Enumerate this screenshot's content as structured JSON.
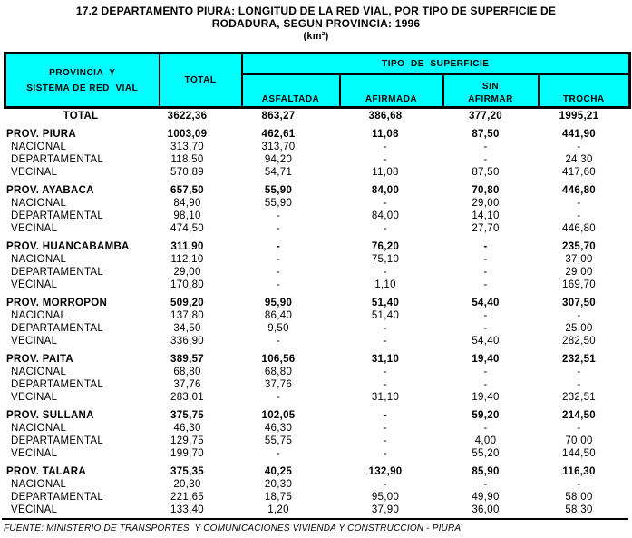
{
  "colors": {
    "header_bg": "#00ffff",
    "border": "#000000",
    "text": "#000000",
    "page_bg": "#ffffff"
  },
  "title": {
    "line1": "17.2  DEPARTAMENTO PIURA: LONGITUD DE LA RED VIAL, POR TIPO DE SUPERFICIE DE",
    "line2": "RODADURA,  SEGUN PROVINCIA: 1996",
    "unit": "(km²)"
  },
  "header": {
    "province_col": "PROVINCIA  Y\nSISTEMA DE RED  VIAL",
    "total_col": "TOTAL",
    "surface_group": "TIPO  DE  SUPERFICIE",
    "surface_cols": [
      "ASFALTADA",
      "AFIRMADA",
      "SIN\nAFIRMAR",
      "TROCHA"
    ]
  },
  "rows": [
    {
      "label": "TOTAL",
      "type": "total",
      "values": [
        "3622,36",
        "863,27",
        "386,68",
        "377,20",
        "1995,21"
      ]
    },
    {
      "label": "PROV. PIURA",
      "type": "province",
      "values": [
        "1003,09",
        "462,61",
        "11,08",
        "87,50",
        "441,90"
      ]
    },
    {
      "label": "NACIONAL",
      "type": "sub",
      "values": [
        "313,70",
        "313,70",
        "-",
        "-",
        "-"
      ]
    },
    {
      "label": "DEPARTAMENTAL",
      "type": "sub",
      "values": [
        "118,50",
        "94,20",
        "-",
        "-",
        "24,30"
      ]
    },
    {
      "label": "VECINAL",
      "type": "sub",
      "values": [
        "570,89",
        "54,71",
        "11,08",
        "87,50",
        "417,60"
      ]
    },
    {
      "label": "PROV. AYABACA",
      "type": "province",
      "values": [
        "657,50",
        "55,90",
        "84,00",
        "70,80",
        "446,80"
      ]
    },
    {
      "label": "NACIONAL",
      "type": "sub",
      "values": [
        "84,90",
        "55,90",
        "-",
        "29,00",
        "-"
      ]
    },
    {
      "label": "DEPARTAMENTAL",
      "type": "sub",
      "values": [
        "98,10",
        "-",
        "84,00",
        "14,10",
        "-"
      ]
    },
    {
      "label": "VECINAL",
      "type": "sub",
      "values": [
        "474,50",
        "-",
        "-",
        "27,70",
        "446,80"
      ]
    },
    {
      "label": "PROV. HUANCABAMBA",
      "type": "province",
      "values": [
        "311,90",
        "-",
        "76,20",
        "-",
        "235,70"
      ]
    },
    {
      "label": "NACIONAL",
      "type": "sub",
      "values": [
        "112,10",
        "-",
        "75,10",
        "-",
        "37,00"
      ]
    },
    {
      "label": "DEPARTAMENTAL",
      "type": "sub",
      "values": [
        "29,00",
        "-",
        "-",
        "-",
        "29,00"
      ]
    },
    {
      "label": "VECINAL",
      "type": "sub",
      "values": [
        "170,80",
        "-",
        "1,10",
        "-",
        "169,70"
      ]
    },
    {
      "label": "PROV. MORROPON",
      "type": "province",
      "values": [
        "509,20",
        "95,90",
        "51,40",
        "54,40",
        "307,50"
      ]
    },
    {
      "label": "NACIONAL",
      "type": "sub",
      "values": [
        "137,80",
        "86,40",
        "51,40",
        "-",
        "-"
      ]
    },
    {
      "label": "DEPARTAMENTAL",
      "type": "sub",
      "values": [
        "34,50",
        "9,50",
        "-",
        "-",
        "25,00"
      ]
    },
    {
      "label": "VECINAL",
      "type": "sub",
      "values": [
        "336,90",
        "-",
        "-",
        "54,40",
        "282,50"
      ]
    },
    {
      "label": "PROV. PAITA",
      "type": "province",
      "values": [
        "389,57",
        "106,56",
        "31,10",
        "19,40",
        "232,51"
      ]
    },
    {
      "label": "NACIONAL",
      "type": "sub",
      "values": [
        "68,80",
        "68,80",
        "-",
        "-",
        "-"
      ]
    },
    {
      "label": "DEPARTAMENTAL",
      "type": "sub",
      "values": [
        "37,76",
        "37,76",
        "-",
        "-",
        "-"
      ]
    },
    {
      "label": "VECINAL",
      "type": "sub",
      "values": [
        "283,01",
        "-",
        "31,10",
        "19,40",
        "232,51"
      ]
    },
    {
      "label": "PROV. SULLANA",
      "type": "province",
      "values": [
        "375,75",
        "102,05",
        "-",
        "59,20",
        "214,50"
      ]
    },
    {
      "label": "NACIONAL",
      "type": "sub",
      "values": [
        "46,30",
        "46,30",
        "-",
        "-",
        "-"
      ]
    },
    {
      "label": "DEPARTAMENTAL",
      "type": "sub",
      "values": [
        "129,75",
        "55,75",
        "-",
        "4,00",
        "70,00"
      ]
    },
    {
      "label": "VECINAL",
      "type": "sub",
      "values": [
        "199,70",
        "-",
        "-",
        "55,20",
        "144,50"
      ]
    },
    {
      "label": "PROV. TALARA",
      "type": "province",
      "values": [
        "375,35",
        "40,25",
        "132,90",
        "85,90",
        "116,30"
      ]
    },
    {
      "label": "NACIONAL",
      "type": "sub",
      "values": [
        "20,30",
        "20,30",
        "-",
        "-",
        "-"
      ]
    },
    {
      "label": "DEPARTAMENTAL",
      "type": "sub",
      "values": [
        "221,65",
        "18,75",
        "95,00",
        "49,90",
        "58,00"
      ]
    },
    {
      "label": "VECINAL",
      "type": "sub",
      "values": [
        "133,40",
        "1,20",
        "37,90",
        "36,00",
        "58,30"
      ]
    }
  ],
  "footer": {
    "source": "FUENTE: MINISTERIO DE TRANSPORTES  Y COMUNICACIONES VIVIENDA Y CONSTRUCCION - PIURA"
  }
}
